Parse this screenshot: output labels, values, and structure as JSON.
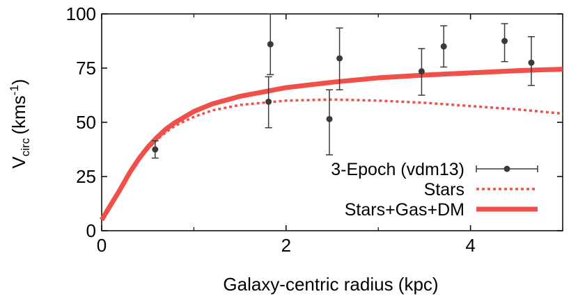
{
  "chart_data": {
    "type": "scatter",
    "xlabel": "Galaxy-centric radius (kpc)",
    "ylabel_main": "V",
    "ylabel_sub": "circ",
    "ylabel_unit": "(kms",
    "ylabel_sup": "-1",
    "ylabel_close": ")",
    "xlim": [
      0,
      5
    ],
    "ylim": [
      0,
      100
    ],
    "xticks": [
      0,
      2,
      4
    ],
    "xtick_labels": [
      "0",
      "2",
      "4"
    ],
    "xminor": [
      1,
      3,
      5
    ],
    "yticks": [
      0,
      25,
      50,
      75,
      100
    ],
    "ytick_labels": [
      "0",
      "25",
      "50",
      "75",
      "100"
    ],
    "grid": false,
    "legend_position": "bottom-right",
    "colors": {
      "points": "#3a3a3a",
      "model": "#f0504a"
    },
    "series": [
      {
        "name": "3-Epoch (vdm13)",
        "kind": "errorbar",
        "points": [
          {
            "x": 0.58,
            "y": 37.5,
            "ylo": 33.5,
            "yhi": 41.5
          },
          {
            "x": 1.83,
            "y": 86.0,
            "ylo": 72.0,
            "yhi": 100.0
          },
          {
            "x": 1.81,
            "y": 59.5,
            "ylo": 47.5,
            "yhi": 71.0
          },
          {
            "x": 2.47,
            "y": 51.5,
            "ylo": 35.0,
            "yhi": 65.0
          },
          {
            "x": 2.58,
            "y": 79.5,
            "ylo": 65.0,
            "yhi": 93.5
          },
          {
            "x": 3.47,
            "y": 73.5,
            "ylo": 62.5,
            "yhi": 84.0
          },
          {
            "x": 3.71,
            "y": 85.0,
            "ylo": 75.5,
            "yhi": 94.5
          },
          {
            "x": 4.37,
            "y": 87.5,
            "ylo": 78.0,
            "yhi": 95.5
          },
          {
            "x": 4.66,
            "y": 77.5,
            "ylo": 67.0,
            "yhi": 89.5
          }
        ]
      },
      {
        "name": "Stars",
        "kind": "dotted-line",
        "x": [
          0,
          0.1,
          0.2,
          0.3,
          0.4,
          0.5,
          0.6,
          0.7,
          0.8,
          1.0,
          1.2,
          1.5,
          2.0,
          2.5,
          3.0,
          3.5,
          4.0,
          4.5,
          5.0
        ],
        "y": [
          5,
          12,
          19,
          26,
          32.5,
          37.5,
          42,
          45.5,
          48.5,
          52.5,
          55.5,
          58,
          60,
          60.5,
          60,
          59,
          57.5,
          56,
          54
        ]
      },
      {
        "name": "Stars+Gas+DM",
        "kind": "solid-line",
        "x": [
          0,
          0.1,
          0.2,
          0.3,
          0.4,
          0.5,
          0.6,
          0.7,
          0.8,
          1.0,
          1.2,
          1.5,
          2.0,
          2.5,
          3.0,
          3.5,
          4.0,
          4.5,
          5.0
        ],
        "y": [
          5,
          12,
          19,
          26.5,
          33,
          38.5,
          43,
          47,
          50,
          55,
          58.5,
          62,
          66,
          68.5,
          70.5,
          71.8,
          72.8,
          73.8,
          74.5
        ]
      }
    ]
  }
}
